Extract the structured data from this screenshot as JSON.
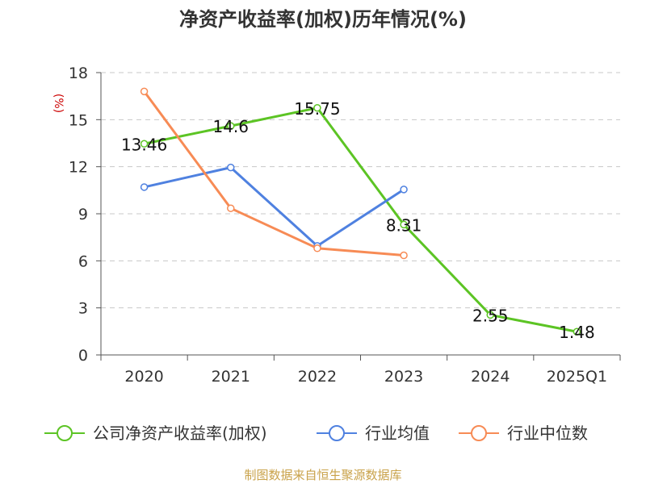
{
  "title": "净资产收益率(加权)历年情况(%)",
  "unit_label": "(%)",
  "source": "制图数据来自恒生聚源数据库",
  "chart_data": {
    "type": "line",
    "title": "净资产收益率(加权)历年情况(%)",
    "xlabel": "",
    "ylabel": "(%)",
    "categories": [
      "2020",
      "2021",
      "2022",
      "2023",
      "2024",
      "2025Q1"
    ],
    "ylim": [
      0,
      18
    ],
    "yticks": [
      "0",
      "3",
      "6",
      "9",
      "12",
      "15",
      "18"
    ],
    "grid": true,
    "legend_position": "bottom",
    "series": [
      {
        "name": "公司净资产收益率(加权)",
        "color": "#5cc424",
        "values": [
          13.46,
          14.6,
          15.75,
          8.31,
          2.55,
          1.48
        ],
        "labels": [
          "13.46",
          "14.6",
          "15.75",
          "8.31",
          "2.55",
          "1.48"
        ],
        "show_labels": true
      },
      {
        "name": "行业均值",
        "color": "#4f81e0",
        "values": [
          10.7,
          11.95,
          6.95,
          10.55,
          null,
          null
        ],
        "show_labels": false
      },
      {
        "name": "行业中位数",
        "color": "#f78b55",
        "values": [
          16.8,
          9.35,
          6.8,
          6.35,
          null,
          null
        ],
        "show_labels": false
      }
    ]
  }
}
